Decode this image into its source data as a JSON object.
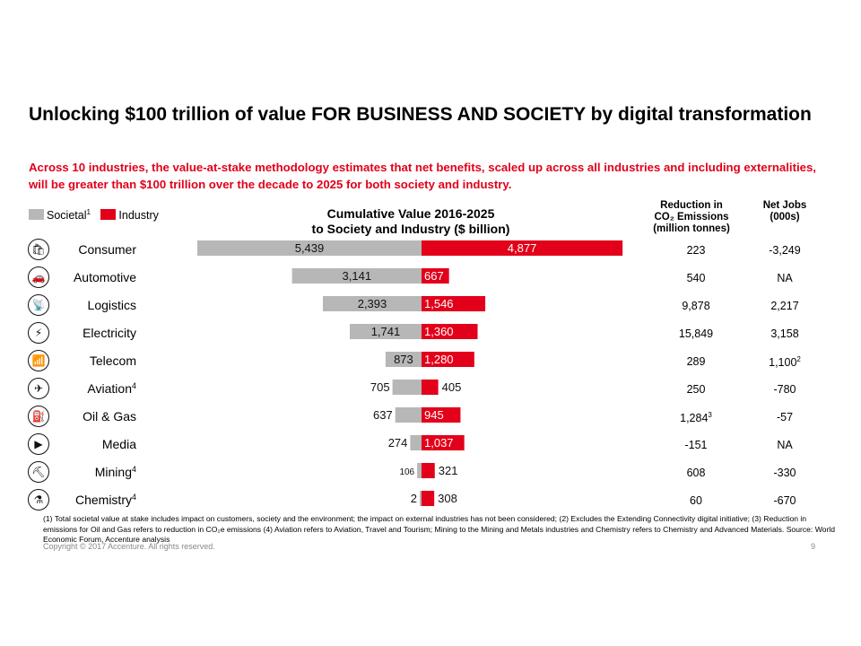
{
  "slide": {
    "title": "Unlocking $100 trillion of value FOR BUSINESS AND SOCIETY by digital transformation",
    "subtitle": "Across 10 industries, the value-at-stake methodology estimates that net benefits, scaled up across all industries and including externalities, will be greater than $100 trillion over the decade to 2025 for both society and industry.",
    "footnote": "(1) Total societal value at stake includes impact on customers, society and the environment; the impact on external industries has not been considered; (2) Excludes the Extending Connectivity digital initiative; (3) Reduction in emissions for Oil and Gas refers to reduction in CO₂e emissions (4) Aviation refers to Aviation, Travel and Tourism; Mining to the Mining and Metals industries and Chemistry refers to Chemistry and Advanced Materials. Source: World Economic Forum, Accenture analysis",
    "copyright": "Copyright © 2017 Accenture. All rights reserved.",
    "page_number": "9"
  },
  "legend": {
    "societal": "Societal",
    "societal_sup": "1",
    "industry": "Industry"
  },
  "columns": {
    "co2_line1": "Reduction in",
    "co2_line2": "CO₂ Emissions",
    "co2_line3": "(million tonnes)",
    "jobs_line1": "Net Jobs",
    "jobs_line2": "(000s)"
  },
  "colors": {
    "societal": "#b7b7b7",
    "industry": "#e2001a",
    "accent": "#e2001a"
  },
  "rows": [
    {
      "name": "Consumer",
      "sup": "",
      "icon": "shopping-bag-icon",
      "glyph": "🛍",
      "co2": "223",
      "co2_sup": "",
      "jobs": "-3,249",
      "jobs_sup": ""
    },
    {
      "name": "Automotive",
      "sup": "",
      "icon": "car-icon",
      "glyph": "🚗",
      "co2": "540",
      "co2_sup": "",
      "jobs": "NA",
      "jobs_sup": ""
    },
    {
      "name": "Logistics",
      "sup": "",
      "icon": "satellite-icon",
      "glyph": "📡",
      "co2": "9,878",
      "co2_sup": "",
      "jobs": "2,217",
      "jobs_sup": ""
    },
    {
      "name": "Electricity",
      "sup": "",
      "icon": "lightning-icon",
      "glyph": "⚡",
      "co2": "15,849",
      "co2_sup": "",
      "jobs": "3,158",
      "jobs_sup": ""
    },
    {
      "name": "Telecom",
      "sup": "",
      "icon": "satellite-dish-icon",
      "glyph": "📶",
      "co2": "289",
      "co2_sup": "",
      "jobs": "1,100",
      "jobs_sup": "2"
    },
    {
      "name": "Aviation",
      "sup": "4",
      "icon": "airplane-icon",
      "glyph": "✈",
      "co2": "250",
      "co2_sup": "",
      "jobs": "-780",
      "jobs_sup": ""
    },
    {
      "name": "Oil & Gas",
      "sup": "",
      "icon": "fuel-pump-icon",
      "glyph": "⛽",
      "co2": "1,284",
      "co2_sup": "3",
      "jobs": "-57",
      "jobs_sup": ""
    },
    {
      "name": "Media",
      "sup": "",
      "icon": "media-player-icon",
      "glyph": "▶",
      "co2": "-151",
      "co2_sup": "",
      "jobs": "NA",
      "jobs_sup": ""
    },
    {
      "name": "Mining",
      "sup": "4",
      "icon": "mine-cart-icon",
      "glyph": "⛏",
      "co2": "608",
      "co2_sup": "",
      "jobs": "-330",
      "jobs_sup": ""
    },
    {
      "name": "Chemistry",
      "sup": "4",
      "icon": "flask-icon",
      "glyph": "⚗",
      "co2": "60",
      "co2_sup": "",
      "jobs": "-670",
      "jobs_sup": ""
    }
  ],
  "chart_data": {
    "type": "bar",
    "orientation": "horizontal-diverging",
    "title": "Cumulative Value 2016-2025\nto Society and Industry ($ billion)",
    "categories": [
      "Consumer",
      "Automotive",
      "Logistics",
      "Electricity",
      "Telecom",
      "Aviation",
      "Oil & Gas",
      "Media",
      "Mining",
      "Chemistry"
    ],
    "series": [
      {
        "name": "Societal",
        "values": [
          5439,
          3141,
          2393,
          1741,
          873,
          705,
          637,
          274,
          106,
          2
        ],
        "labels": [
          "5,439",
          "3,141",
          "2,393",
          "1,741",
          "873",
          "705",
          "637",
          "274",
          "106",
          "2"
        ]
      },
      {
        "name": "Industry",
        "values": [
          4877,
          667,
          1546,
          1360,
          1280,
          405,
          945,
          1037,
          321,
          308
        ],
        "labels": [
          "4,877",
          "667",
          "1,546",
          "1,360",
          "1,280",
          "405",
          "945",
          "1,037",
          "321",
          "308"
        ]
      }
    ],
    "legend": "top-left"
  }
}
